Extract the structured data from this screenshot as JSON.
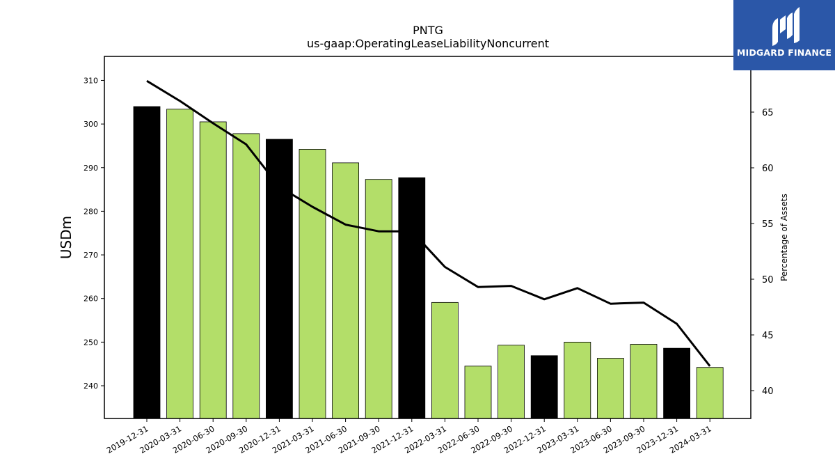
{
  "brand": {
    "name": "MIDGARD FINANCE",
    "background": "#2b57a8",
    "icon": "midgard-logo-icon"
  },
  "chart_data": {
    "type": "bar",
    "title": "PNTG",
    "subtitle": "us-gaap:OperatingLeaseLiabilityNoncurrent",
    "ylabel": "USDm",
    "y2label": "Percentage of Assets",
    "ylim": [
      232.5,
      315.5
    ],
    "y2lim": [
      37.5,
      70
    ],
    "yticks": [
      240,
      250,
      260,
      270,
      280,
      290,
      300,
      310
    ],
    "y2ticks": [
      40,
      45,
      50,
      55,
      60,
      65
    ],
    "grid": false,
    "legend": "none",
    "categories": [
      "2019-12-31",
      "2020-03-31",
      "2020-06-30",
      "2020-09-30",
      "2020-12-31",
      "2021-03-31",
      "2021-06-30",
      "2021-09-30",
      "2021-12-31",
      "2022-03-31",
      "2022-06-30",
      "2022-09-30",
      "2022-12-31",
      "2023-03-31",
      "2023-06-30",
      "2023-09-30",
      "2023-12-31",
      "2024-03-31"
    ],
    "series": [
      {
        "kind": "bar",
        "axis": "left",
        "values": [
          304.0,
          303.4,
          300.5,
          297.8,
          296.5,
          294.2,
          291.1,
          287.3,
          287.7,
          259.1,
          244.5,
          249.3,
          246.9,
          250.0,
          246.3,
          249.5,
          248.6,
          244.2
        ],
        "colors": [
          "#000000",
          "#b3de69",
          "#b3de69",
          "#b3de69",
          "#000000",
          "#b3de69",
          "#b3de69",
          "#b3de69",
          "#000000",
          "#b3de69",
          "#b3de69",
          "#b3de69",
          "#000000",
          "#b3de69",
          "#b3de69",
          "#b3de69",
          "#000000",
          "#b3de69"
        ]
      },
      {
        "kind": "line",
        "axis": "right",
        "color": "#000000",
        "values": [
          67.8,
          66.0,
          64.0,
          62.1,
          58.3,
          56.5,
          54.9,
          54.3,
          54.3,
          51.1,
          49.3,
          49.4,
          48.2,
          49.2,
          47.8,
          47.9,
          46.0,
          42.2
        ]
      }
    ]
  }
}
